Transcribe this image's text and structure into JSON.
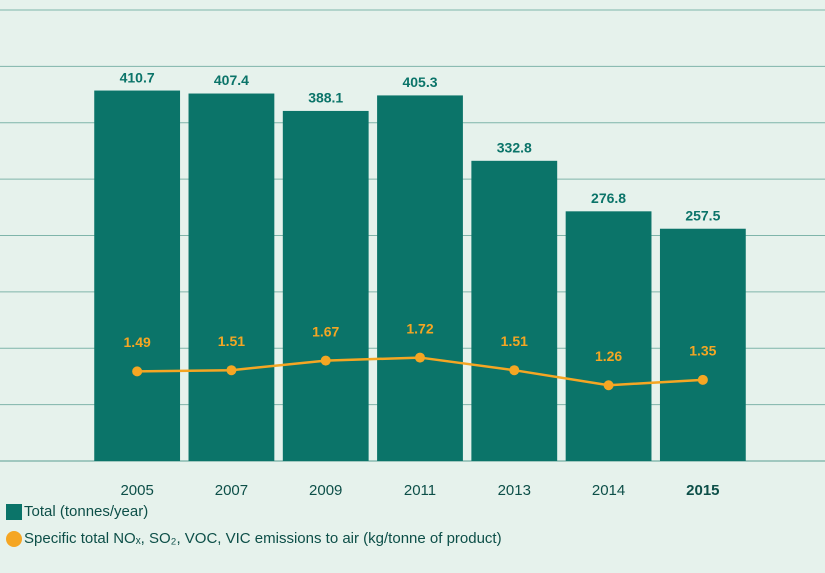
{
  "chart_data": {
    "type": "bar_line",
    "categories": [
      "2005",
      "2007",
      "2009",
      "2011",
      "2013",
      "2014",
      "2015"
    ],
    "series": [
      {
        "name": "Total (tonnes/year)",
        "color": "#0b7469",
        "type": "bar",
        "values": [
          410.7,
          407.4,
          388.1,
          405.3,
          332.8,
          276.8,
          257.5
        ]
      },
      {
        "name": "Specific total NOₓ, SO₂, VOC, VIC emissions to air (kg/tonne of product)",
        "color": "#f5a623",
        "type": "line",
        "axis": "y2",
        "values": [
          1.49,
          1.51,
          1.67,
          1.72,
          1.51,
          1.26,
          1.35
        ]
      }
    ],
    "ylim": [
      0,
      500
    ],
    "yticks": [
      0,
      62.5,
      125,
      187.5,
      250,
      312.5,
      375,
      437.5,
      500
    ],
    "y2lim": [
      0,
      7.5
    ],
    "grid": true
  }
}
